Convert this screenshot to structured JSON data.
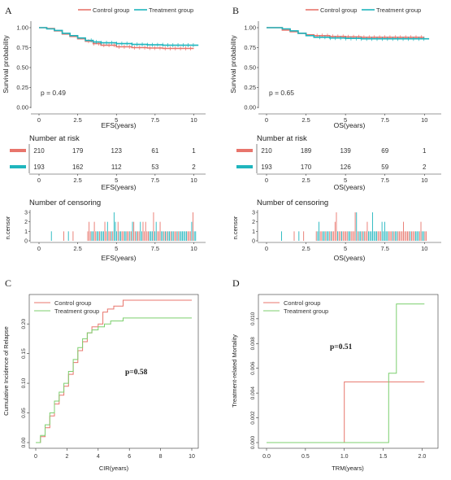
{
  "chart_data": [
    {
      "panel": "A",
      "type": "line",
      "title": "",
      "xlabel": "EFS(years)",
      "ylabel": "Survival probability",
      "xlim": [
        0,
        10.5
      ],
      "ylim": [
        0,
        1
      ],
      "x_ticks": [
        "0",
        "2.5",
        "5",
        "7.5",
        "10"
      ],
      "y_ticks": [
        "0.00",
        "0.25",
        "0.50",
        "0.75",
        "1.00"
      ],
      "annotation": "p = 0.49",
      "legend": [
        "Control group",
        "Treatment group"
      ],
      "legend_position": "top",
      "series": [
        {
          "name": "Control group",
          "color": "#E8756C",
          "x": [
            0,
            0.5,
            1.0,
            1.5,
            2.0,
            2.5,
            3.0,
            3.5,
            4.0,
            5.0,
            6.0,
            7.0,
            8.0,
            9.0,
            10.0
          ],
          "values": [
            1.0,
            0.99,
            0.96,
            0.92,
            0.89,
            0.86,
            0.83,
            0.8,
            0.78,
            0.76,
            0.75,
            0.745,
            0.74,
            0.74,
            0.74
          ]
        },
        {
          "name": "Treatment group",
          "color": "#1FB5BD",
          "x": [
            0,
            0.5,
            1.0,
            1.5,
            2.0,
            2.5,
            3.0,
            3.5,
            4.0,
            5.0,
            6.0,
            7.0,
            8.0,
            9.0,
            10.3
          ],
          "values": [
            1.0,
            0.985,
            0.965,
            0.93,
            0.9,
            0.87,
            0.84,
            0.82,
            0.81,
            0.8,
            0.79,
            0.785,
            0.78,
            0.78,
            0.78
          ]
        }
      ],
      "risk_table": {
        "title": "Number at risk",
        "xlabel": "EFS(years)",
        "times": [
          "0",
          "2.5",
          "5",
          "7.5",
          "10"
        ],
        "rows": [
          {
            "color": "#E8756C",
            "values": [
              "210",
              "179",
              "123",
              "61",
              "1"
            ]
          },
          {
            "color": "#1FB5BD",
            "values": [
              "193",
              "162",
              "112",
              "53",
              "2"
            ]
          }
        ]
      },
      "censor": {
        "title": "Number of censoring",
        "xlabel": "EFS(years)",
        "ylabel": "n.censor",
        "y_ticks": [
          "0",
          "1",
          "2",
          "3"
        ],
        "x_ticks": [
          "0",
          "2.5",
          "5",
          "7.5",
          "10"
        ]
      }
    },
    {
      "panel": "B",
      "type": "line",
      "title": "",
      "xlabel": "OS(years)",
      "ylabel": "Survival probability",
      "xlim": [
        0,
        10.5
      ],
      "ylim": [
        0,
        1
      ],
      "x_ticks": [
        "0",
        "2.5",
        "5",
        "7.5",
        "10"
      ],
      "y_ticks": [
        "0.00",
        "0.25",
        "0.50",
        "0.75",
        "1.00"
      ],
      "annotation": "p = 0.65",
      "legend": [
        "Control group",
        "Treatment group"
      ],
      "legend_position": "top",
      "series": [
        {
          "name": "Control group",
          "color": "#E8756C",
          "x": [
            0,
            0.7,
            1.0,
            1.5,
            2.0,
            2.5,
            3.0,
            4.0,
            5.0,
            6.0,
            7.0,
            8.0,
            9.0,
            10.0
          ],
          "values": [
            1.0,
            1.0,
            0.97,
            0.95,
            0.93,
            0.91,
            0.9,
            0.89,
            0.885,
            0.88,
            0.88,
            0.88,
            0.88,
            0.88
          ]
        },
        {
          "name": "Treatment group",
          "color": "#1FB5BD",
          "x": [
            0,
            0.7,
            1.0,
            1.5,
            2.0,
            2.5,
            3.0,
            4.0,
            5.0,
            6.0,
            7.0,
            8.0,
            9.0,
            10.3
          ],
          "values": [
            1.0,
            1.0,
            0.985,
            0.96,
            0.93,
            0.9,
            0.88,
            0.87,
            0.865,
            0.86,
            0.86,
            0.86,
            0.86,
            0.86
          ]
        }
      ],
      "risk_table": {
        "title": "Number at risk",
        "xlabel": "OS(years)",
        "times": [
          "0",
          "2.5",
          "5",
          "7.5",
          "10"
        ],
        "rows": [
          {
            "color": "#E8756C",
            "values": [
              "210",
              "189",
              "139",
              "69",
              "1"
            ]
          },
          {
            "color": "#1FB5BD",
            "values": [
              "193",
              "170",
              "126",
              "59",
              "2"
            ]
          }
        ]
      },
      "censor": {
        "title": "Number of censoring",
        "xlabel": "OS(years)",
        "ylabel": "n.censor",
        "y_ticks": [
          "0",
          "1",
          "2",
          "3"
        ],
        "x_ticks": [
          "0",
          "2.5",
          "5",
          "7.5",
          "10"
        ]
      }
    },
    {
      "panel": "C",
      "type": "line",
      "title": "",
      "xlabel": "CIR(years)",
      "ylabel": "Cumulative Incidence of Relapse",
      "xlim": [
        0,
        10
      ],
      "ylim": [
        0,
        0.24
      ],
      "x_ticks": [
        "0",
        "2",
        "4",
        "6",
        "8",
        "10"
      ],
      "y_ticks": [
        "0.00",
        "0.05",
        "0.10",
        "0.15",
        "0.20"
      ],
      "annotation": "p=0.58",
      "legend": [
        "Control group",
        "Treatment group"
      ],
      "legend_position": "top-left",
      "series": [
        {
          "name": "Control group",
          "color": "#E8756C",
          "x": [
            0,
            0.3,
            0.6,
            0.9,
            1.2,
            1.5,
            1.8,
            2.1,
            2.4,
            2.7,
            3.0,
            3.3,
            3.6,
            4.0,
            4.3,
            4.6,
            5.0,
            5.6,
            10.0
          ],
          "values": [
            0.0,
            0.01,
            0.025,
            0.045,
            0.065,
            0.08,
            0.095,
            0.115,
            0.135,
            0.155,
            0.17,
            0.185,
            0.195,
            0.2,
            0.22,
            0.225,
            0.23,
            0.24,
            0.24
          ]
        },
        {
          "name": "Treatment group",
          "color": "#7CCF6E",
          "x": [
            0,
            0.3,
            0.6,
            0.9,
            1.2,
            1.5,
            1.8,
            2.1,
            2.4,
            2.7,
            3.0,
            3.3,
            3.6,
            4.0,
            4.4,
            4.8,
            5.6,
            10.0
          ],
          "values": [
            0.0,
            0.012,
            0.03,
            0.05,
            0.07,
            0.085,
            0.1,
            0.12,
            0.14,
            0.16,
            0.175,
            0.185,
            0.19,
            0.195,
            0.2,
            0.205,
            0.21,
            0.21
          ]
        }
      ]
    },
    {
      "panel": "D",
      "type": "line",
      "title": "",
      "xlabel": "TRM(years)",
      "ylabel": "Treatment-related Mortality",
      "xlim": [
        0,
        2.1
      ],
      "ylim": [
        0,
        0.0115
      ],
      "x_ticks": [
        "0.0",
        "0.5",
        "1.0",
        "1.5",
        "2.0"
      ],
      "y_ticks": [
        "0.000",
        "0.002",
        "0.004",
        "0.006",
        "0.008",
        "0.010"
      ],
      "annotation": "p=0.51",
      "legend": [
        "Control group",
        "Treatment group"
      ],
      "legend_position": "top-left",
      "series": [
        {
          "name": "Control group",
          "color": "#E8756C",
          "x": [
            0,
            1.0,
            1.0,
            2.03
          ],
          "values": [
            0.0,
            0.0,
            0.0049,
            0.0049
          ]
        },
        {
          "name": "Treatment group",
          "color": "#7CCF6E",
          "x": [
            0,
            1.57,
            1.57,
            1.67,
            1.67,
            2.03
          ],
          "values": [
            0.0,
            0.0,
            0.0056,
            0.0056,
            0.0112,
            0.0112
          ]
        }
      ]
    }
  ]
}
